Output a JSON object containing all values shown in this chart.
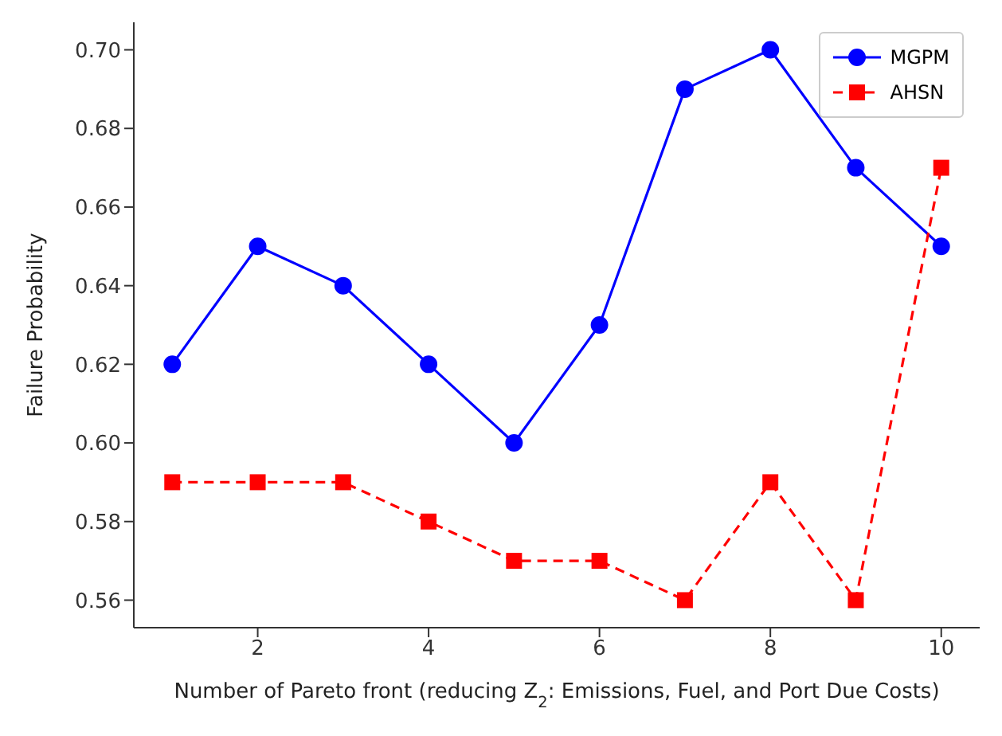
{
  "chart_data": {
    "type": "line",
    "xlabel": "Number of Pareto front (reducing Z$_{2}$: Emissions, Fuel, and Port Due Costs)",
    "ylabel": "Failure Probability",
    "x": [
      1,
      2,
      3,
      4,
      5,
      6,
      7,
      8,
      9,
      10
    ],
    "series": [
      {
        "name": "MGPM",
        "color": "#0000ff",
        "marker": "circle",
        "line_style": "solid",
        "values": [
          0.62,
          0.65,
          0.64,
          0.62,
          0.6,
          0.63,
          0.69,
          0.7,
          0.67,
          0.65
        ]
      },
      {
        "name": "AHSN",
        "color": "#ff0000",
        "marker": "square",
        "line_style": "dashed",
        "values": [
          0.59,
          0.59,
          0.59,
          0.58,
          0.57,
          0.57,
          0.56,
          0.59,
          0.56,
          0.67
        ]
      }
    ],
    "xlim": [
      0.55,
      10.45
    ],
    "xticks": [
      2,
      4,
      6,
      8,
      10
    ],
    "ylim": [
      0.553,
      0.707
    ],
    "yticks": [
      {
        "value": 0.56,
        "label": "0.56"
      },
      {
        "value": 0.58,
        "label": "0.58"
      },
      {
        "value": 0.6,
        "label": "0.60"
      },
      {
        "value": 0.62,
        "label": "0.62"
      },
      {
        "value": 0.64,
        "label": "0.64"
      },
      {
        "value": 0.66,
        "label": "0.66"
      },
      {
        "value": 0.68,
        "label": "0.68"
      },
      {
        "value": 0.7,
        "label": "0.70"
      }
    ],
    "grid": false,
    "legend": "top right"
  }
}
